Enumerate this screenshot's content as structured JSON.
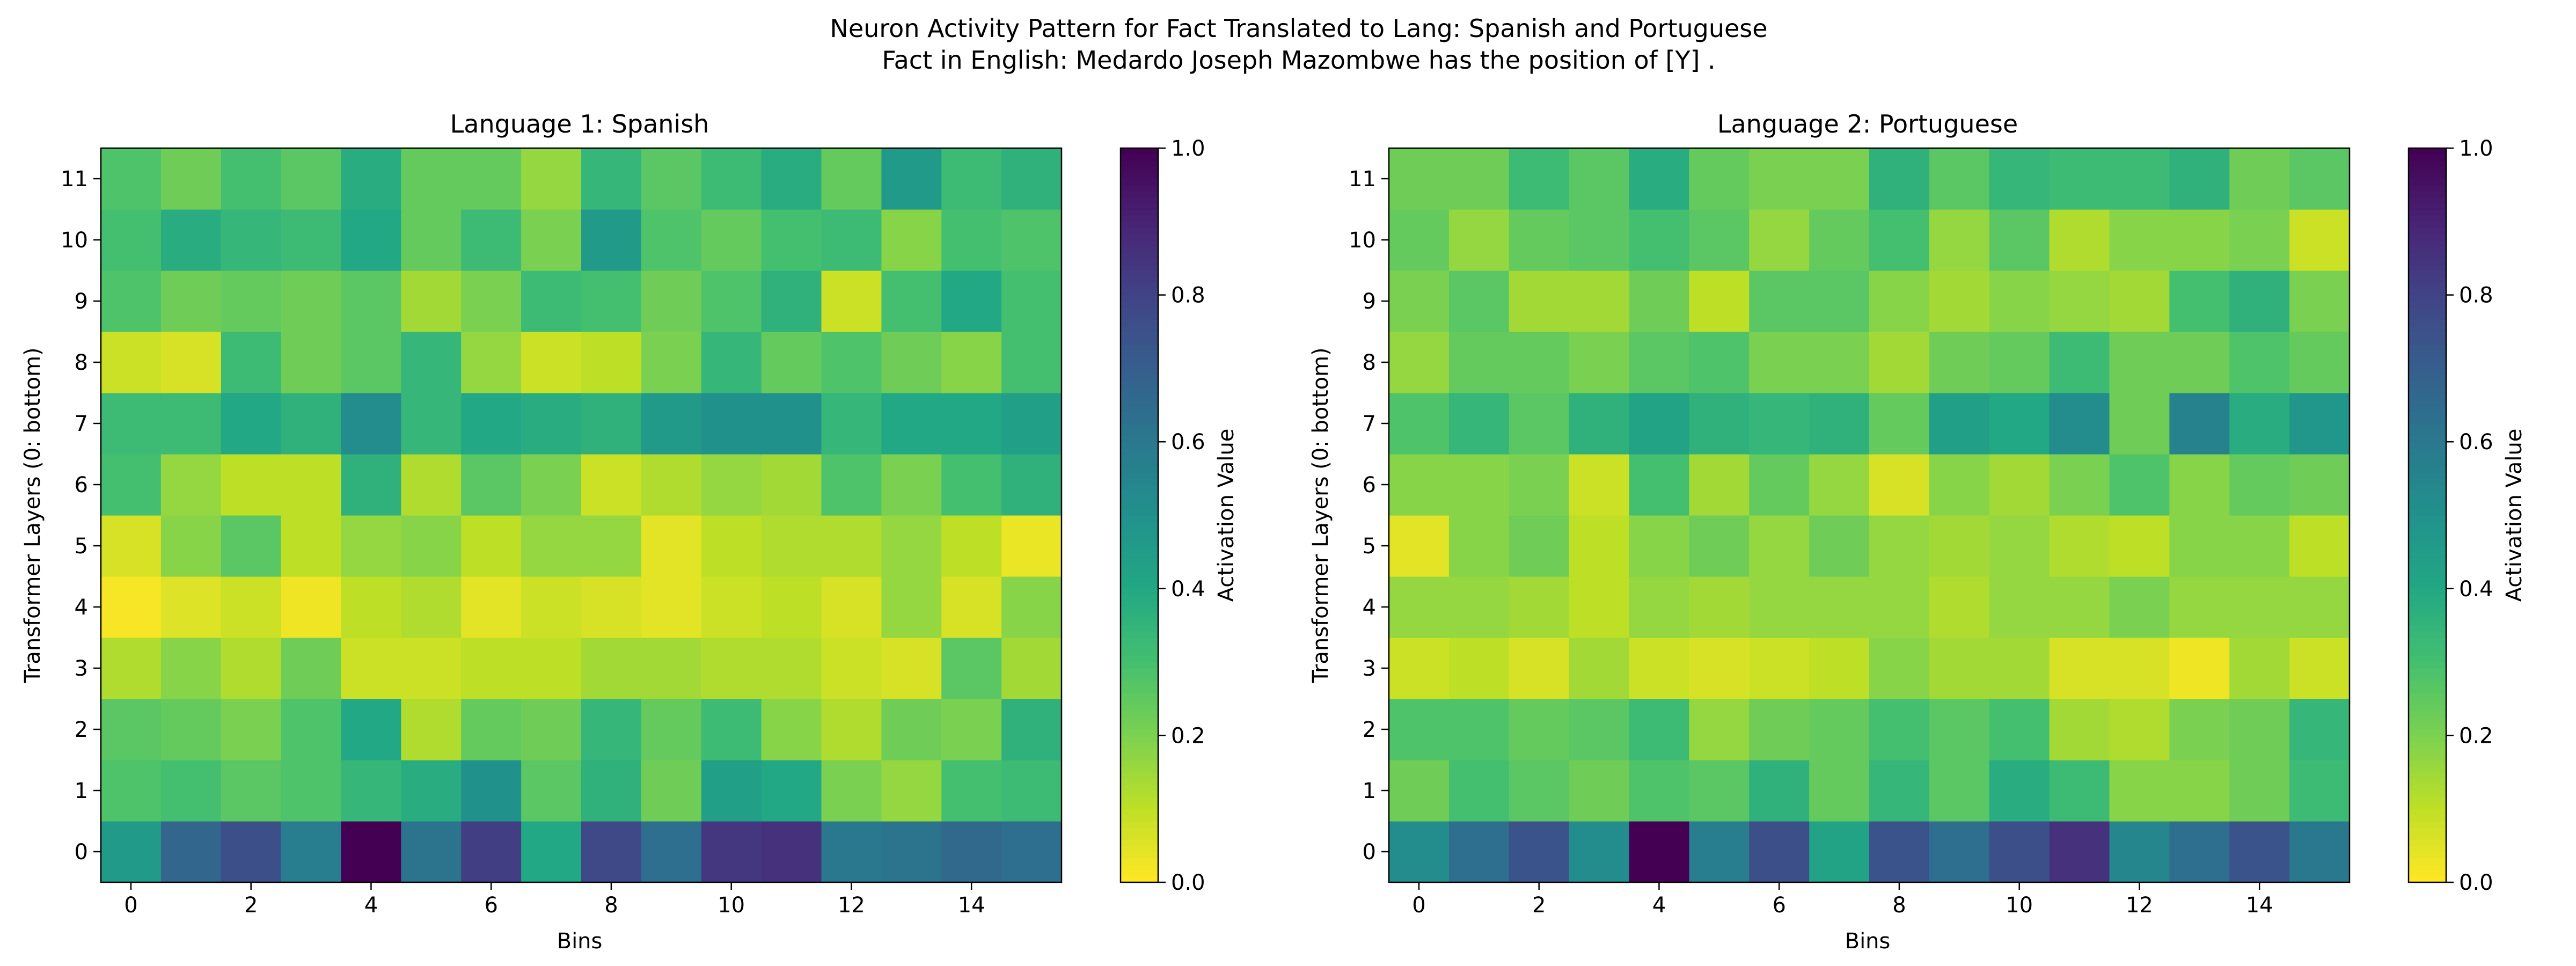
{
  "figure": {
    "title_line1": "Neuron Activity Pattern for Fact Translated to Lang: Spanish and Portuguese",
    "title_line2": "Fact in English: Medardo Joseph Mazombwe has the position of [Y] ."
  },
  "chart_data": [
    {
      "type": "heatmap",
      "title": "Language 1: Spanish",
      "xlabel": "Bins",
      "ylabel": "Transformer Layers (0: bottom)",
      "colorbar_label": "Activation Value",
      "colormap": "viridis_r",
      "vmin": 0.0,
      "vmax": 1.0,
      "x_ticks": [
        0,
        2,
        4,
        6,
        8,
        10,
        12,
        14
      ],
      "y_ticks": [
        0,
        1,
        2,
        3,
        4,
        5,
        6,
        7,
        8,
        9,
        10,
        11
      ],
      "colorbar_ticks": [
        "0.0",
        "0.2",
        "0.4",
        "0.6",
        "0.8",
        "1.0"
      ],
      "rows": [
        [
          0.46,
          0.67,
          0.76,
          0.58,
          1.0,
          0.62,
          0.82,
          0.4,
          0.78,
          0.64,
          0.84,
          0.86,
          0.6,
          0.62,
          0.66,
          0.64
        ],
        [
          0.28,
          0.3,
          0.26,
          0.28,
          0.34,
          0.38,
          0.5,
          0.26,
          0.36,
          0.22,
          0.44,
          0.4,
          0.2,
          0.16,
          0.3,
          0.32
        ],
        [
          0.26,
          0.24,
          0.2,
          0.28,
          0.4,
          0.12,
          0.24,
          0.22,
          0.34,
          0.24,
          0.32,
          0.18,
          0.12,
          0.22,
          0.2,
          0.36
        ],
        [
          0.12,
          0.18,
          0.12,
          0.22,
          0.08,
          0.08,
          0.1,
          0.1,
          0.14,
          0.14,
          0.12,
          0.12,
          0.08,
          0.06,
          0.26,
          0.14
        ],
        [
          0.01,
          0.05,
          0.08,
          0.02,
          0.1,
          0.12,
          0.04,
          0.08,
          0.06,
          0.04,
          0.08,
          0.1,
          0.06,
          0.16,
          0.06,
          0.18
        ],
        [
          0.06,
          0.18,
          0.26,
          0.1,
          0.16,
          0.18,
          0.1,
          0.16,
          0.16,
          0.04,
          0.1,
          0.12,
          0.12,
          0.16,
          0.1,
          0.03
        ],
        [
          0.3,
          0.16,
          0.1,
          0.1,
          0.36,
          0.12,
          0.26,
          0.2,
          0.08,
          0.12,
          0.16,
          0.14,
          0.28,
          0.2,
          0.3,
          0.36
        ],
        [
          0.32,
          0.32,
          0.4,
          0.36,
          0.52,
          0.34,
          0.4,
          0.38,
          0.36,
          0.46,
          0.5,
          0.5,
          0.34,
          0.4,
          0.4,
          0.44
        ],
        [
          0.08,
          0.06,
          0.32,
          0.22,
          0.26,
          0.34,
          0.16,
          0.08,
          0.1,
          0.2,
          0.34,
          0.24,
          0.28,
          0.22,
          0.18,
          0.3
        ],
        [
          0.28,
          0.22,
          0.24,
          0.22,
          0.26,
          0.14,
          0.2,
          0.32,
          0.3,
          0.22,
          0.28,
          0.36,
          0.08,
          0.3,
          0.4,
          0.3
        ],
        [
          0.3,
          0.38,
          0.34,
          0.32,
          0.4,
          0.24,
          0.32,
          0.2,
          0.46,
          0.28,
          0.24,
          0.3,
          0.32,
          0.18,
          0.3,
          0.28
        ],
        [
          0.28,
          0.22,
          0.3,
          0.26,
          0.38,
          0.24,
          0.24,
          0.16,
          0.34,
          0.26,
          0.32,
          0.38,
          0.24,
          0.46,
          0.32,
          0.36
        ]
      ]
    },
    {
      "type": "heatmap",
      "title": "Language 2: Portuguese",
      "xlabel": "Bins",
      "ylabel": "Transformer Layers (0: bottom)",
      "colorbar_label": "Activation Value",
      "colormap": "viridis_r",
      "vmin": 0.0,
      "vmax": 1.0,
      "x_ticks": [
        0,
        2,
        4,
        6,
        8,
        10,
        12,
        14
      ],
      "y_ticks": [
        0,
        1,
        2,
        3,
        4,
        5,
        6,
        7,
        8,
        9,
        10,
        11
      ],
      "colorbar_ticks": [
        "0.0",
        "0.2",
        "0.4",
        "0.6",
        "0.8",
        "1.0"
      ],
      "rows": [
        [
          0.52,
          0.64,
          0.74,
          0.52,
          1.0,
          0.58,
          0.76,
          0.42,
          0.74,
          0.64,
          0.76,
          0.86,
          0.54,
          0.64,
          0.74,
          0.6
        ],
        [
          0.22,
          0.3,
          0.26,
          0.22,
          0.28,
          0.26,
          0.36,
          0.24,
          0.34,
          0.26,
          0.38,
          0.32,
          0.18,
          0.18,
          0.22,
          0.32
        ],
        [
          0.28,
          0.28,
          0.24,
          0.26,
          0.32,
          0.16,
          0.22,
          0.24,
          0.3,
          0.26,
          0.3,
          0.14,
          0.12,
          0.2,
          0.22,
          0.34
        ],
        [
          0.08,
          0.1,
          0.06,
          0.14,
          0.08,
          0.06,
          0.08,
          0.1,
          0.18,
          0.14,
          0.14,
          0.06,
          0.06,
          0.02,
          0.14,
          0.08
        ],
        [
          0.16,
          0.16,
          0.14,
          0.1,
          0.16,
          0.14,
          0.16,
          0.16,
          0.16,
          0.12,
          0.16,
          0.16,
          0.2,
          0.16,
          0.16,
          0.16
        ],
        [
          0.04,
          0.18,
          0.22,
          0.1,
          0.18,
          0.22,
          0.16,
          0.22,
          0.16,
          0.14,
          0.16,
          0.12,
          0.1,
          0.18,
          0.18,
          0.1
        ],
        [
          0.18,
          0.18,
          0.2,
          0.08,
          0.3,
          0.14,
          0.24,
          0.16,
          0.06,
          0.18,
          0.14,
          0.2,
          0.28,
          0.18,
          0.24,
          0.22
        ],
        [
          0.28,
          0.34,
          0.26,
          0.36,
          0.42,
          0.36,
          0.34,
          0.36,
          0.24,
          0.44,
          0.4,
          0.52,
          0.22,
          0.56,
          0.38,
          0.48
        ],
        [
          0.16,
          0.24,
          0.24,
          0.2,
          0.26,
          0.28,
          0.2,
          0.2,
          0.14,
          0.22,
          0.24,
          0.32,
          0.22,
          0.22,
          0.28,
          0.24
        ],
        [
          0.2,
          0.26,
          0.14,
          0.14,
          0.22,
          0.1,
          0.26,
          0.26,
          0.18,
          0.14,
          0.18,
          0.16,
          0.14,
          0.3,
          0.36,
          0.2
        ],
        [
          0.24,
          0.16,
          0.24,
          0.26,
          0.3,
          0.26,
          0.16,
          0.24,
          0.3,
          0.16,
          0.26,
          0.12,
          0.18,
          0.18,
          0.2,
          0.08
        ],
        [
          0.22,
          0.22,
          0.32,
          0.26,
          0.38,
          0.24,
          0.2,
          0.2,
          0.36,
          0.26,
          0.34,
          0.32,
          0.32,
          0.36,
          0.22,
          0.26
        ]
      ]
    }
  ]
}
